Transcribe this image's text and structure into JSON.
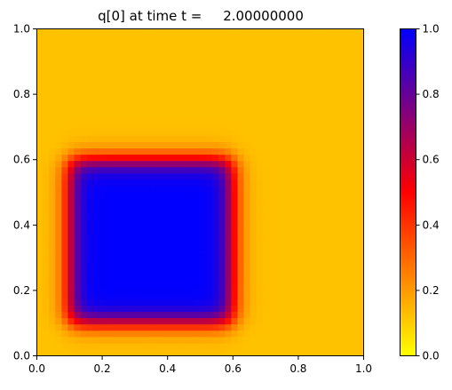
{
  "chart_data": {
    "type": "heatmap",
    "title": "q[0] at time t =     2.00000000",
    "xlabel": "",
    "ylabel": "",
    "xlim": [
      0,
      1
    ],
    "ylim": [
      0,
      1
    ],
    "x_ticks": [
      "0.0",
      "0.2",
      "0.4",
      "0.6",
      "0.8",
      "1.0"
    ],
    "y_ticks": [
      "0.0",
      "0.2",
      "0.4",
      "0.6",
      "0.8",
      "1.0"
    ],
    "grid": false,
    "field": {
      "background_value": 0.12,
      "square_value": 1.0,
      "square_x_range": [
        0.1,
        0.6
      ],
      "square_y_range": [
        0.1,
        0.6
      ]
    },
    "colorbar": {
      "range": [
        0.0,
        1.0
      ],
      "ticks": [
        "0.0",
        "0.2",
        "0.4",
        "0.6",
        "0.8",
        "1.0"
      ],
      "colormap_stops": [
        {
          "value": 0.0,
          "color": "#ffff00"
        },
        {
          "value": 0.5,
          "color": "#ff0000"
        },
        {
          "value": 1.0,
          "color": "#0000ff"
        }
      ]
    }
  }
}
